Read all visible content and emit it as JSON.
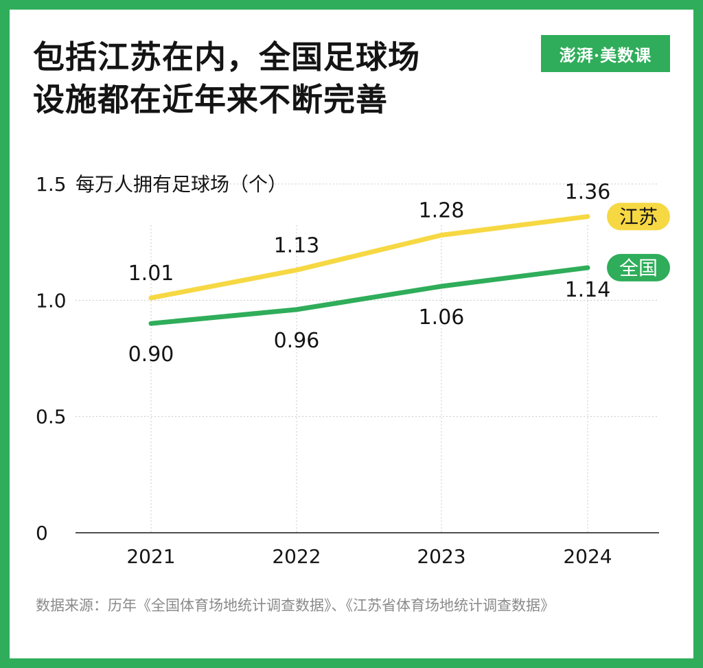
{
  "header": {
    "title_line1": "包括江苏在内，全国足球场",
    "title_line2": "设施都在近年来不断完善",
    "logo_text": "澎湃·美数课"
  },
  "chart_data": {
    "type": "line",
    "categories": [
      "2021",
      "2022",
      "2023",
      "2024"
    ],
    "ylabel": "每万人拥有足球场（个）",
    "ylim": [
      0,
      1.5
    ],
    "yticks": [
      "0",
      "0.5",
      "1.0",
      "1.5"
    ],
    "grid": true,
    "legend": "end-of-line labels",
    "series": [
      {
        "name": "江苏",
        "color": "#f6d843",
        "values": [
          1.01,
          1.13,
          1.28,
          1.36
        ],
        "labels": [
          "1.01",
          "1.13",
          "1.28",
          "1.36"
        ]
      },
      {
        "name": "全国",
        "color": "#2fad5a",
        "values": [
          0.9,
          0.96,
          1.06,
          1.14
        ],
        "labels": [
          "0.90",
          "0.96",
          "1.06",
          "1.14"
        ]
      }
    ]
  },
  "footer": {
    "source": "数据来源：历年《全国体育场地统计调查数据》、《江苏省体育场地统计调查数据》"
  },
  "colors": {
    "frame": "#2fad5a",
    "jiangsu": "#f6d843",
    "national": "#2fad5a",
    "text": "#141414",
    "source_text": "#8a8a8a"
  }
}
